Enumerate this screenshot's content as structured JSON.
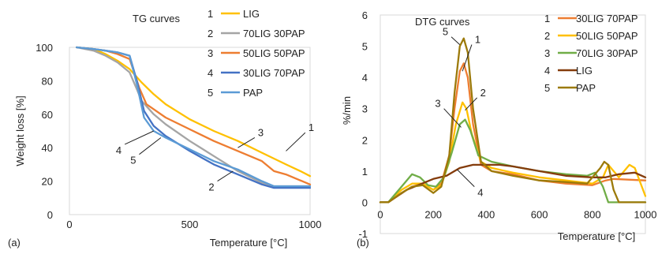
{
  "chart_data": [
    {
      "panel_label": "(a)",
      "type": "line",
      "title": "TG curves",
      "xlabel": "Temperature [°C]",
      "ylabel": "Weight loss [%]",
      "xlim": [
        0,
        1000
      ],
      "ylim": [
        0,
        100
      ],
      "xticks": [
        0,
        500,
        1000
      ],
      "yticks": [
        0,
        20,
        40,
        60,
        80,
        100
      ],
      "legend_position": "top-right",
      "series": [
        {
          "num": "1",
          "name": "LIG",
          "color": "#FFC000",
          "x": [
            30,
            100,
            150,
            200,
            250,
            300,
            350,
            400,
            500,
            600,
            700,
            800,
            900,
            960,
            1000
          ],
          "y": [
            100,
            99,
            96,
            92,
            87,
            79,
            72,
            66,
            57,
            50,
            44,
            37,
            30,
            26,
            23
          ]
        },
        {
          "num": "2",
          "name": "70LIG 30PAP",
          "color": "#A5A5A5",
          "x": [
            30,
            100,
            150,
            200,
            250,
            280,
            300,
            350,
            400,
            500,
            600,
            700,
            800,
            850,
            1000
          ],
          "y": [
            100,
            98,
            95,
            91,
            85,
            75,
            68,
            60,
            54,
            44,
            35,
            26,
            19,
            17,
            17
          ]
        },
        {
          "num": "3",
          "name": "50LIG 50PAP",
          "color": "#ED7D31",
          "x": [
            30,
            100,
            150,
            200,
            250,
            290,
            320,
            350,
            400,
            500,
            600,
            700,
            800,
            850,
            900,
            1000
          ],
          "y": [
            100,
            99,
            98,
            96,
            93,
            76,
            66,
            63,
            58,
            51,
            44,
            38,
            32,
            26,
            24,
            18
          ]
        },
        {
          "num": "4",
          "name": "30LIG 70PAP",
          "color": "#4472C4",
          "x": [
            30,
            100,
            150,
            200,
            250,
            280,
            310,
            350,
            400,
            500,
            600,
            700,
            800,
            850,
            1000
          ],
          "y": [
            100,
            99,
            98,
            97,
            95,
            80,
            62,
            53,
            47,
            38,
            30,
            24,
            18,
            16,
            16
          ]
        },
        {
          "num": "5",
          "name": "PAP",
          "color": "#5B9BD5",
          "x": [
            30,
            100,
            150,
            200,
            250,
            280,
            310,
            350,
            400,
            500,
            600,
            700,
            800,
            850,
            1000
          ],
          "y": [
            100,
            99,
            98,
            97,
            95,
            78,
            58,
            50,
            46,
            39,
            32,
            27,
            20,
            17,
            17
          ]
        }
      ],
      "annotations": [
        {
          "label": "1",
          "x": 980,
          "y": 49,
          "ax": 900,
          "ay": 38
        },
        {
          "label": "2",
          "x": 615,
          "y": 20,
          "ax": 680,
          "ay": 26
        },
        {
          "label": "3",
          "x": 770,
          "y": 46,
          "ax": 700,
          "ay": 40
        },
        {
          "label": "4",
          "x": 230,
          "y": 42,
          "ax": 350,
          "ay": 50
        },
        {
          "label": "5",
          "x": 290,
          "y": 36,
          "ax": 380,
          "ay": 46
        }
      ]
    },
    {
      "panel_label": "(b)",
      "type": "line",
      "title": "DTG curves",
      "xlabel": "Temperature [°C]",
      "ylabel": "%/min",
      "xlim": [
        0,
        1000
      ],
      "ylim": [
        -1,
        6
      ],
      "xticks": [
        0,
        200,
        400,
        600,
        800,
        1000
      ],
      "yticks": [
        -1,
        0,
        1,
        2,
        3,
        4,
        5,
        6
      ],
      "legend_position": "top-right",
      "series": [
        {
          "num": "1",
          "name": "30LIG 70PAP",
          "color": "#ED7D31",
          "x": [
            0,
            30,
            80,
            120,
            160,
            200,
            230,
            260,
            280,
            300,
            315,
            330,
            350,
            380,
            420,
            500,
            600,
            700,
            800,
            850,
            880,
            1000
          ],
          "y": [
            0,
            0,
            0.3,
            0.5,
            0.6,
            0.4,
            0.6,
            1.5,
            3.0,
            4.2,
            4.45,
            4.0,
            2.5,
            1.2,
            1.0,
            0.9,
            0.7,
            0.6,
            0.55,
            0.7,
            0.75,
            0.7
          ]
        },
        {
          "num": "2",
          "name": "50LIG 50PAP",
          "color": "#FFC000",
          "x": [
            0,
            30,
            80,
            120,
            160,
            200,
            230,
            260,
            285,
            310,
            325,
            345,
            380,
            420,
            500,
            600,
            700,
            800,
            840,
            860,
            900,
            940,
            960,
            1000
          ],
          "y": [
            0,
            0,
            0.4,
            0.6,
            0.6,
            0.4,
            0.55,
            1.3,
            2.5,
            3.2,
            3.0,
            2.2,
            1.3,
            1.1,
            0.95,
            0.8,
            0.7,
            0.6,
            0.8,
            1.2,
            0.8,
            1.2,
            1.1,
            0.2
          ]
        },
        {
          "num": "3",
          "name": "70LIG 30PAP",
          "color": "#70AD47",
          "x": [
            0,
            30,
            80,
            120,
            150,
            180,
            210,
            240,
            270,
            300,
            320,
            340,
            370,
            420,
            500,
            600,
            700,
            780,
            810,
            840,
            860,
            1000
          ],
          "y": [
            0,
            0,
            0.5,
            0.9,
            0.8,
            0.55,
            0.5,
            0.8,
            1.6,
            2.5,
            2.65,
            2.3,
            1.5,
            1.3,
            1.15,
            1.0,
            0.9,
            0.85,
            0.95,
            0.5,
            0.0,
            0.0
          ]
        },
        {
          "num": "4",
          "name": "LIG",
          "color": "#843C0C",
          "x": [
            0,
            30,
            100,
            200,
            250,
            300,
            350,
            400,
            450,
            500,
            600,
            700,
            800,
            850,
            900,
            960,
            1000
          ],
          "y": [
            0,
            0,
            0.4,
            0.75,
            0.85,
            1.1,
            1.2,
            1.2,
            1.2,
            1.15,
            1.0,
            0.85,
            0.8,
            0.8,
            0.9,
            0.95,
            0.8
          ]
        },
        {
          "num": "5",
          "name": "PAP",
          "color": "#9C7A0A",
          "x": [
            0,
            30,
            80,
            120,
            160,
            200,
            230,
            260,
            280,
            300,
            315,
            330,
            350,
            380,
            420,
            500,
            600,
            700,
            780,
            830,
            845,
            860,
            880,
            900,
            1000
          ],
          "y": [
            0,
            0,
            0.3,
            0.5,
            0.55,
            0.3,
            0.5,
            1.5,
            3.5,
            5.0,
            5.25,
            4.8,
            3.0,
            1.3,
            1.0,
            0.85,
            0.7,
            0.65,
            0.6,
            1.1,
            1.3,
            1.2,
            0.4,
            0.0,
            0.0
          ]
        }
      ],
      "annotations": [
        {
          "label": "1",
          "x": 345,
          "y": 5.05,
          "ax": 310,
          "ay": 4.2
        },
        {
          "label": "2",
          "x": 365,
          "y": 3.35,
          "ax": 320,
          "ay": 2.95
        },
        {
          "label": "3",
          "x": 240,
          "y": 3.0,
          "ax": 305,
          "ay": 2.4
        },
        {
          "label": "4",
          "x": 355,
          "y": 0.5,
          "ax": 290,
          "ay": 1.05
        },
        {
          "label": "5",
          "x": 268,
          "y": 5.3,
          "ax": 300,
          "ay": 5.05
        }
      ]
    }
  ]
}
